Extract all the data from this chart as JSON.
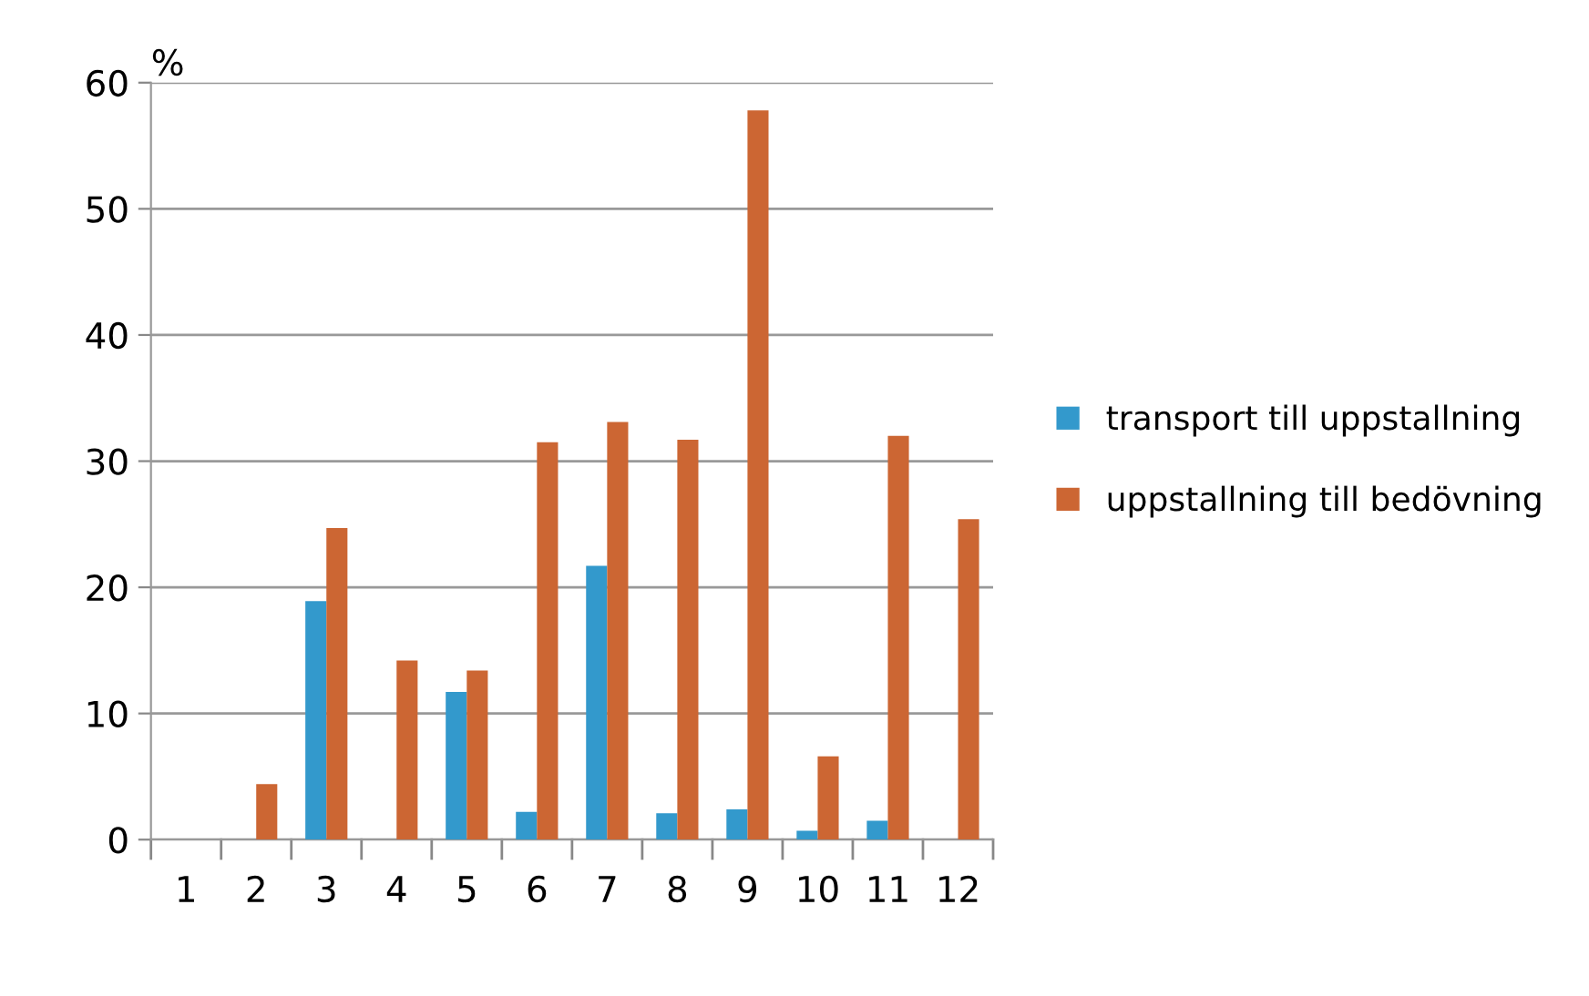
{
  "chart_data": {
    "type": "bar",
    "ylabel": "%",
    "categories": [
      "1",
      "2",
      "3",
      "4",
      "5",
      "6",
      "7",
      "8",
      "9",
      "10",
      "11",
      "12"
    ],
    "series": [
      {
        "name": "transport till uppstallning",
        "color": "#3399cc",
        "values": [
          0,
          0,
          18.9,
          0,
          11.7,
          2.2,
          21.7,
          2.1,
          2.4,
          0.7,
          1.5,
          0
        ]
      },
      {
        "name": "uppstallning till bedövning",
        "color": "#cc6633",
        "values": [
          0,
          4.4,
          24.7,
          14.2,
          13.4,
          31.5,
          33.1,
          31.7,
          57.8,
          6.6,
          32.0,
          25.4
        ]
      }
    ],
    "ylim": [
      0,
      60
    ],
    "yticks": [
      0,
      10,
      20,
      30,
      40,
      50,
      60
    ],
    "grid": "y",
    "legend": "right"
  }
}
